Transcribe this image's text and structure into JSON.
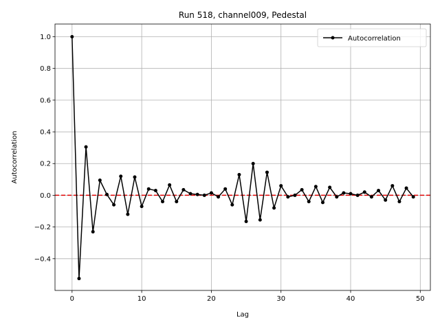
{
  "chart_data": {
    "type": "line",
    "title": "Run 518, channel009, Pedestal",
    "xlabel": "Lag",
    "ylabel": "Autocorrelation",
    "xlim": [
      -2.45,
      51.45
    ],
    "ylim": [
      -0.6,
      1.08
    ],
    "x_ticks": [
      0,
      10,
      20,
      30,
      40,
      50
    ],
    "x_tick_labels": [
      "0",
      "10",
      "20",
      "30",
      "40",
      "50"
    ],
    "y_ticks": [
      -0.4,
      -0.2,
      0.0,
      0.2,
      0.4,
      0.6,
      0.8,
      1.0
    ],
    "y_tick_labels": [
      "−0.4",
      "−0.2",
      "0.0",
      "0.2",
      "0.4",
      "0.6",
      "0.8",
      "1.0"
    ],
    "grid": true,
    "legend_position": "top-right",
    "series": [
      {
        "name": "Autocorrelation",
        "color": "#000000",
        "marker": "circle",
        "x": [
          0,
          1,
          2,
          3,
          4,
          5,
          6,
          7,
          8,
          9,
          10,
          11,
          12,
          13,
          14,
          15,
          16,
          17,
          18,
          19,
          20,
          21,
          22,
          23,
          24,
          25,
          26,
          27,
          28,
          29,
          30,
          31,
          32,
          33,
          34,
          35,
          36,
          37,
          38,
          39,
          40,
          41,
          42,
          43,
          44,
          45,
          46,
          47,
          48,
          49
        ],
        "values": [
          1.0,
          -0.525,
          0.305,
          -0.23,
          0.095,
          0.005,
          -0.06,
          0.12,
          -0.12,
          0.115,
          -0.07,
          0.04,
          0.03,
          -0.04,
          0.065,
          -0.04,
          0.035,
          0.01,
          0.005,
          0.0,
          0.015,
          -0.01,
          0.04,
          -0.06,
          0.13,
          -0.165,
          0.2,
          -0.155,
          0.145,
          -0.08,
          0.06,
          -0.01,
          0.0,
          0.035,
          -0.04,
          0.055,
          -0.045,
          0.05,
          -0.01,
          0.015,
          0.01,
          0.0,
          0.02,
          -0.01,
          0.03,
          -0.03,
          0.06,
          -0.04,
          0.045,
          -0.01
        ]
      }
    ],
    "reference_line": {
      "y": 0.0,
      "color": "#e00000",
      "style": "dashed"
    }
  }
}
